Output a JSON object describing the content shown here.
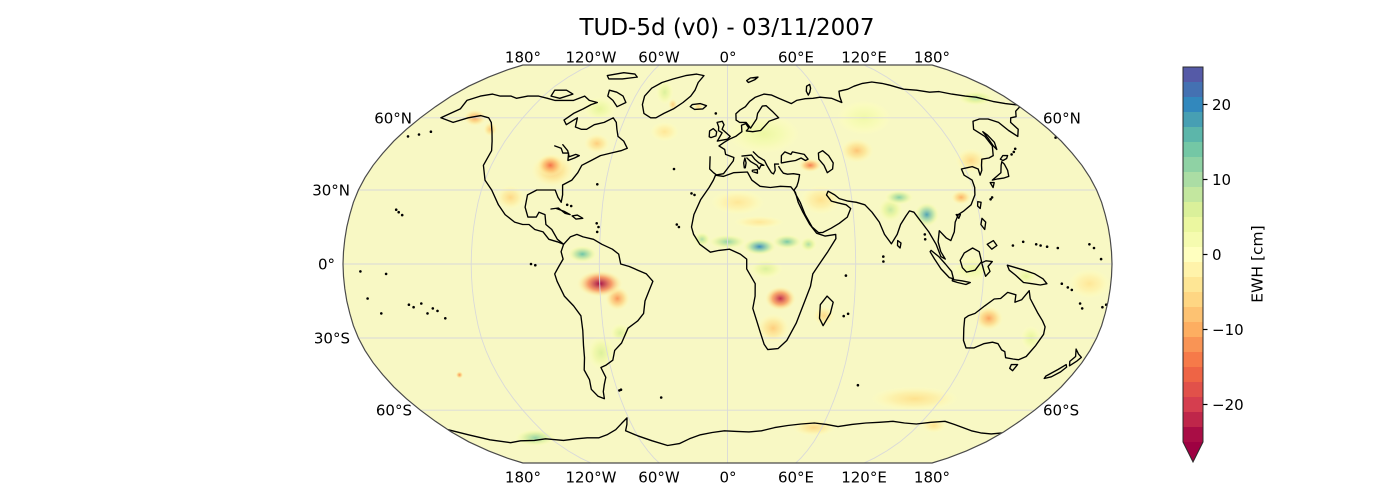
{
  "title": "TUD-5d (v0) - 03/11/2007",
  "figure": {
    "background": "#ffffff",
    "map_base_color": "#f8f8c4",
    "coastline_color": "#000000",
    "grid_color": "#d9d9d9",
    "border_color": "#4a4a4a"
  },
  "axes": {
    "lon_labels_top": [
      "180°",
      "120°W",
      "60°W",
      "0°",
      "60°E",
      "120°E",
      "180°"
    ],
    "lon_labels_bottom": [
      "180°",
      "120°W",
      "60°W",
      "0°",
      "60°E",
      "120°E",
      "180°"
    ],
    "lat_labels_left": [
      "60°N",
      "30°N",
      "0°",
      "30°S",
      "60°S"
    ],
    "lat_labels_right": [
      "60°N",
      "60°S"
    ]
  },
  "colorbar": {
    "label": "EWH [cm]",
    "tick_labels": [
      "20",
      "10",
      "0",
      "−10",
      "−20"
    ],
    "tick_values": [
      20,
      10,
      0,
      -10,
      -20
    ],
    "vmin": -25,
    "vmax": 25,
    "n_bands": 25,
    "extend": "min",
    "colormap_name": "Spectral",
    "colormap_colors": [
      "#9e0142",
      "#d53e4f",
      "#f46d43",
      "#fdae61",
      "#fee08b",
      "#ffffbf",
      "#e6f598",
      "#abdda4",
      "#66c2a5",
      "#3288bd",
      "#5e4fa2"
    ]
  },
  "chart_data": {
    "type": "heatmap",
    "title": "TUD-5d (v0) - 03/11/2007",
    "dataset": "TUD-5d",
    "version": "v0",
    "date": "03/11/2007",
    "projection": "Robinson",
    "variable": "EWH [cm]",
    "colormap": "Spectral",
    "value_range_cm": [
      -25,
      25
    ],
    "colorbar_ticks_cm": [
      20,
      10,
      0,
      -10,
      -20
    ],
    "lon_gridlines_deg": [
      -180,
      -120,
      -60,
      0,
      60,
      120,
      180
    ],
    "lat_gridlines_deg": [
      -60,
      -30,
      0,
      30,
      60
    ],
    "background_value_cm": 0,
    "anomalies": [
      {
        "region": "Europe",
        "lon": 20,
        "lat": 53,
        "value_cm": 4,
        "extent_deg": [
          20,
          8
        ]
      },
      {
        "region": "Western Siberia",
        "lon": 80,
        "lat": 60,
        "value_cm": 3,
        "extent_deg": [
          16,
          7
        ]
      },
      {
        "region": "Hudson Bay / Arctic Canada",
        "lon": -78,
        "lat": 64,
        "value_cm": 5,
        "extent_deg": [
          10,
          5
        ]
      },
      {
        "region": "Greenland interior",
        "lon": -42,
        "lat": 72,
        "value_cm": 6,
        "extent_deg": [
          6,
          5
        ]
      },
      {
        "region": "Southeast Greenland coast",
        "lon": -34,
        "lat": 66,
        "value_cm": -7,
        "extent_deg": [
          3,
          2.5
        ]
      },
      {
        "region": "Iceland",
        "lon": -18,
        "lat": 65,
        "value_cm": -6,
        "extent_deg": [
          3,
          2
        ]
      },
      {
        "region": "North Atlantic",
        "lon": -35,
        "lat": 54,
        "value_cm": -4,
        "extent_deg": [
          8,
          4
        ]
      },
      {
        "region": "Quebec / Labrador",
        "lon": -70,
        "lat": 49,
        "value_cm": -7,
        "extent_deg": [
          7,
          4
        ]
      },
      {
        "region": "Northern Mexico / SW US",
        "lon": -105,
        "lat": 27,
        "value_cm": -6,
        "extent_deg": [
          7,
          5
        ]
      },
      {
        "region": "Argentina",
        "lon": -63,
        "lat": -36,
        "value_cm": 6,
        "extent_deg": [
          7,
          7
        ]
      },
      {
        "region": "Southern Brazil",
        "lon": -52,
        "lat": -28,
        "value_cm": 6,
        "extent_deg": [
          5,
          4
        ]
      },
      {
        "region": "Congo basin",
        "lon": 18,
        "lat": -2,
        "value_cm": 6,
        "extent_deg": [
          8,
          4
        ]
      },
      {
        "region": "North Africa",
        "lon": 5,
        "lat": 25,
        "value_cm": -4,
        "extent_deg": [
          13,
          5
        ]
      },
      {
        "region": "Sahel dry streak",
        "lon": 15,
        "lat": 17,
        "value_cm": -4,
        "extent_deg": [
          12,
          2.5
        ]
      },
      {
        "region": "Middle East",
        "lon": 45,
        "lat": 26,
        "value_cm": -5,
        "extent_deg": [
          10,
          6
        ]
      },
      {
        "region": "Kalahari / South Africa",
        "lon": 22,
        "lat": -26,
        "value_cm": -7,
        "extent_deg": [
          8,
          6
        ]
      },
      {
        "region": "Madagascar",
        "lon": 46,
        "lat": -21,
        "value_cm": -6,
        "extent_deg": [
          5,
          4
        ]
      },
      {
        "region": "Central Asia",
        "lon": 68,
        "lat": 46,
        "value_cm": -8,
        "extent_deg": [
          9,
          5
        ]
      },
      {
        "region": "Northeast China",
        "lon": 125,
        "lat": 42,
        "value_cm": -6,
        "extent_deg": [
          8,
          5
        ]
      },
      {
        "region": "Indonesia",
        "lon": 115,
        "lat": -2,
        "value_cm": 4,
        "extent_deg": [
          10,
          5
        ]
      },
      {
        "region": "New Guinea",
        "lon": 140,
        "lat": -5,
        "value_cm": 5,
        "extent_deg": [
          5,
          3
        ]
      },
      {
        "region": "Eastern Australia",
        "lon": 148,
        "lat": -30,
        "value_cm": 5,
        "extent_deg": [
          5,
          5
        ]
      },
      {
        "region": "Southern Ocean south of Australia",
        "lon": 105,
        "lat": -55,
        "value_cm": -5,
        "extent_deg": [
          25,
          5
        ]
      },
      {
        "region": "Equatorial West Pacific",
        "lon": 170,
        "lat": -8,
        "value_cm": -4,
        "extent_deg": [
          10,
          6
        ]
      },
      {
        "region": "East Antarctica 60E",
        "lon": 55,
        "lat": -68,
        "value_cm": -6,
        "extent_deg": [
          14,
          3.5
        ]
      },
      {
        "region": "East Antarctica 130E",
        "lon": 130,
        "lat": -67,
        "value_cm": -5,
        "extent_deg": [
          8,
          3
        ]
      },
      {
        "region": "Gulf of Alaska coast",
        "lon": -148,
        "lat": 60,
        "value_cm": -11,
        "extent_deg": [
          7,
          3.5
        ]
      },
      {
        "region": "British Columbia coast",
        "lon": -133,
        "lat": 55,
        "value_cm": -8,
        "extent_deg": [
          4,
          3
        ]
      },
      {
        "region": "US Midwest halo",
        "lon": -88,
        "lat": 38,
        "value_cm": -8,
        "extent_deg": [
          11,
          7
        ]
      },
      {
        "region": "US Midwest / Great Lakes",
        "lon": -90,
        "lat": 40,
        "value_cm": -15,
        "extent_deg": [
          7,
          4.5
        ]
      },
      {
        "region": "Colombia / Venezuela",
        "lon": -68,
        "lat": 4,
        "value_cm": 15,
        "extent_deg": [
          7,
          3.5
        ]
      },
      {
        "region": "Amazon southeast tail",
        "lon": -52,
        "lat": -14,
        "value_cm": -12,
        "extent_deg": [
          6,
          5
        ]
      },
      {
        "region": "Amazon basin",
        "lon": -60,
        "lat": -8,
        "value_cm": -25,
        "extent_deg": [
          11,
          5.5
        ]
      },
      {
        "region": "West African coast",
        "lon": -12,
        "lat": 10,
        "value_cm": 10,
        "extent_deg": [
          4,
          3
        ]
      },
      {
        "region": "Sahel band west",
        "lon": 0,
        "lat": 9,
        "value_cm": 12,
        "extent_deg": [
          9,
          3
        ]
      },
      {
        "region": "Central Africa",
        "lon": 15,
        "lat": 7,
        "value_cm": 20,
        "extent_deg": [
          8,
          3.5
        ]
      },
      {
        "region": "South Sudan",
        "lon": 28,
        "lat": 9,
        "value_cm": 14,
        "extent_deg": [
          7,
          3
        ]
      },
      {
        "region": "Ethiopia",
        "lon": 38,
        "lat": 8,
        "value_cm": 10,
        "extent_deg": [
          4,
          3
        ]
      },
      {
        "region": "Zambia / Angola",
        "lon": 25,
        "lat": -14,
        "value_cm": -22,
        "extent_deg": [
          7.5,
          5
        ]
      },
      {
        "region": "Eastern Turkey / Caucasus",
        "lon": 42,
        "lat": 40,
        "value_cm": -14,
        "extent_deg": [
          6,
          2.8
        ]
      },
      {
        "region": "Northern India",
        "lon": 78,
        "lat": 22,
        "value_cm": 8,
        "extent_deg": [
          6,
          5
        ]
      },
      {
        "region": "Himalaya / Nepal",
        "lon": 83,
        "lat": 27,
        "value_cm": 13,
        "extent_deg": [
          7,
          3
        ]
      },
      {
        "region": "Myanmar / Thailand",
        "lon": 95,
        "lat": 20,
        "value_cm": 18,
        "extent_deg": [
          6,
          5
        ]
      },
      {
        "region": "Southern China",
        "lon": 113,
        "lat": 27,
        "value_cm": -10,
        "extent_deg": [
          5,
          3
        ]
      },
      {
        "region": "Northeast Siberia coast",
        "lon": 160,
        "lat": 69,
        "value_cm": 9,
        "extent_deg": [
          12,
          3
        ]
      },
      {
        "region": "Western Australia",
        "lon": 125,
        "lat": -22,
        "value_cm": -11,
        "extent_deg": [
          7,
          5
        ]
      },
      {
        "region": "West Antarctica",
        "lon": -130,
        "lat": -73,
        "value_cm": 12,
        "extent_deg": [
          14,
          3.5
        ]
      },
      {
        "region": "South Pacific spot",
        "lon": -140,
        "lat": -45,
        "value_cm": -13,
        "extent_deg": [
          2,
          1.5
        ]
      }
    ]
  }
}
